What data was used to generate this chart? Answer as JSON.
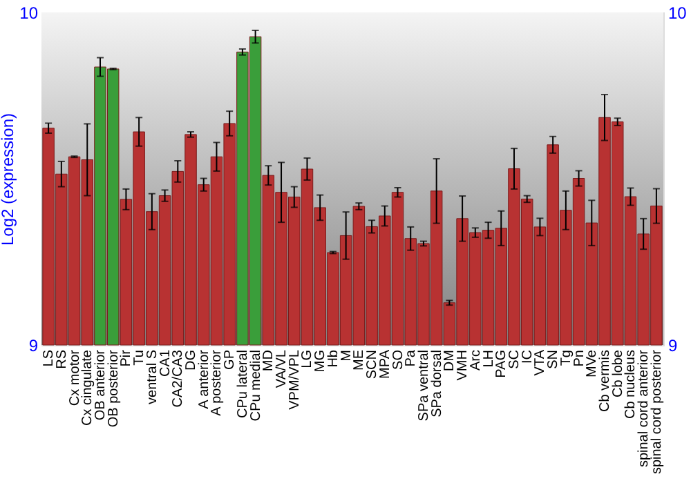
{
  "chart_data": {
    "type": "bar",
    "ylabel": "Log2 (expression)",
    "categories": [
      "LS",
      "RS",
      "Cx motor",
      "Cx cingulate",
      "OB anterior",
      "OB posterior",
      "Pir",
      "Tu",
      "ventral S",
      "CA1",
      "CA2/CA3",
      "DG",
      "A anterior",
      "A posterior",
      "GP",
      "CPu lateral",
      "CPu medial",
      "MD",
      "VA/VL",
      "VPM/VPL",
      "LG",
      "MG",
      "Hb",
      "M",
      "ME",
      "SCN",
      "MPA",
      "SO",
      "Pa",
      "SPa ventral",
      "SPa dorsal",
      "DM",
      "VMH",
      "Arc",
      "LH",
      "PAG",
      "SC",
      "IC",
      "VTA",
      "SN",
      "Tg",
      "Pn",
      "MVe",
      "Cb vermis",
      "Cb lobe",
      "Cb nucleus",
      "spinal cord anterior",
      "spinal cord posterior"
    ],
    "values": [
      9.652,
      9.514,
      9.566,
      9.557,
      9.836,
      9.83,
      9.438,
      9.641,
      9.401,
      9.449,
      9.522,
      9.633,
      9.482,
      9.566,
      9.666,
      9.881,
      9.927,
      9.51,
      9.459,
      9.445,
      9.529,
      9.413,
      9.278,
      9.329,
      9.417,
      9.356,
      9.388,
      9.459,
      9.32,
      9.305,
      9.463,
      9.127,
      9.38,
      9.338,
      9.345,
      9.351,
      9.53,
      9.439,
      9.355,
      9.602,
      9.405,
      9.501,
      9.367,
      9.684,
      9.671,
      9.446,
      9.334,
      9.418
    ],
    "errors": [
      0.015,
      0.038,
      0.002,
      0.108,
      0.028,
      0.002,
      0.031,
      0.043,
      0.054,
      0.017,
      0.032,
      0.008,
      0.019,
      0.043,
      0.037,
      0.009,
      0.019,
      0.029,
      0.09,
      0.031,
      0.033,
      0.038,
      0.003,
      0.071,
      0.01,
      0.019,
      0.03,
      0.014,
      0.035,
      0.007,
      0.097,
      0.007,
      0.068,
      0.014,
      0.024,
      0.052,
      0.061,
      0.01,
      0.026,
      0.025,
      0.058,
      0.023,
      0.068,
      0.069,
      0.011,
      0.026,
      0.046,
      0.052
    ],
    "colors": [
      "#b83232",
      "#b83232",
      "#b83232",
      "#b83232",
      "#3a9e3a",
      "#3a9e3a",
      "#b83232",
      "#b83232",
      "#b83232",
      "#b83232",
      "#b83232",
      "#b83232",
      "#b83232",
      "#b83232",
      "#b83232",
      "#3a9e3a",
      "#3a9e3a",
      "#b83232",
      "#b83232",
      "#b83232",
      "#b83232",
      "#b83232",
      "#b83232",
      "#b83232",
      "#b83232",
      "#b83232",
      "#b83232",
      "#b83232",
      "#b83232",
      "#b83232",
      "#b83232",
      "#b83232",
      "#b83232",
      "#b83232",
      "#b83232",
      "#b83232",
      "#b83232",
      "#b83232",
      "#b83232",
      "#b83232",
      "#b83232",
      "#b83232",
      "#b83232",
      "#b83232",
      "#b83232",
      "#b83232",
      "#b83232",
      "#b83232"
    ],
    "ylim": [
      9,
      10
    ],
    "yticks": [
      9,
      10
    ],
    "y2lim": [
      9,
      10
    ],
    "y2ticks": [
      9,
      10
    ]
  }
}
